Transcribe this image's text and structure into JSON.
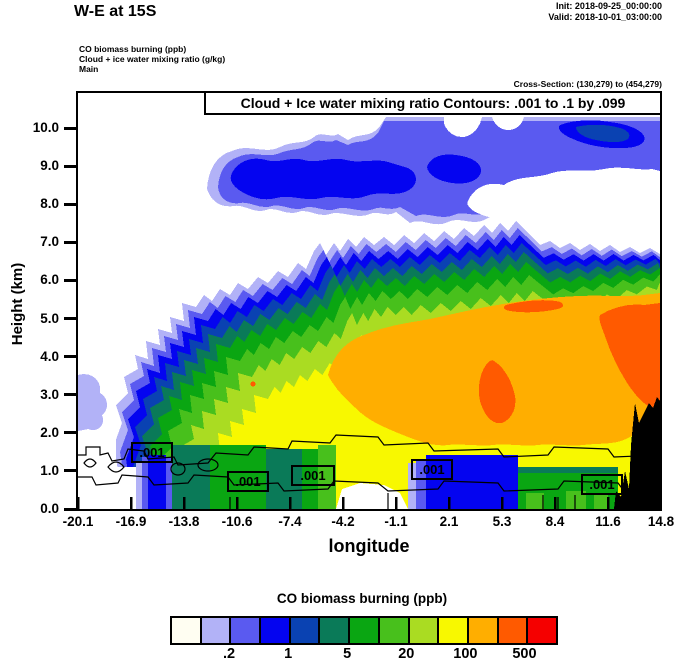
{
  "header": {
    "title": "W-E at 15S",
    "init": "Init: 2018-09-25_00:00:00",
    "valid": "Valid: 2018-10-01_03:00:00",
    "field_line1": "CO biomass burning   (ppb)",
    "field_line2": "Cloud + ice water mixing ratio   (g/kg)",
    "field_line3": "Main",
    "cross_section": "Cross-Section: (130,279) to (454,279)"
  },
  "plot": {
    "contour_note": "Cloud + Ice water mixing ratio Contours: .001 to .1 by .099",
    "xlabel": "longitude",
    "ylabel": "Height (km)",
    "x_ticks": [
      "-20.1",
      "-16.9",
      "-13.8",
      "-10.6",
      "-7.4",
      "-4.2",
      "-1.1",
      "2.1",
      "5.3",
      "8.4",
      "11.6",
      "14.8"
    ],
    "y_ticks": [
      "0.0",
      "1.0",
      "2.0",
      "3.0",
      "4.0",
      "5.0",
      "6.0",
      "7.0",
      "8.0",
      "9.0",
      "10.0"
    ],
    "contour_line_label": ".001"
  },
  "colorbar": {
    "title": "CO biomass burning  (ppb)",
    "tick_labels": [
      ".2",
      "1",
      "5",
      "20",
      "100",
      "500"
    ],
    "colors": [
      "#fffef2",
      "#b2b2f7",
      "#5a5af0",
      "#0404f0",
      "#0a42b2",
      "#0a7a58",
      "#0aa612",
      "#48c01c",
      "#aadc22",
      "#f8f800",
      "#ffae00",
      "#ff5a00",
      "#f50000"
    ]
  },
  "chart_data": {
    "type": "heatmap",
    "title": "Cloud + Ice water mixing ratio Contours: .001 to .1 by .099",
    "xlabel": "longitude",
    "ylabel": "Height (km)",
    "x_ticks": [
      -20.1,
      -16.9,
      -13.8,
      -10.6,
      -7.4,
      -4.2,
      -1.1,
      2.1,
      5.3,
      8.4,
      11.6,
      14.8
    ],
    "y_ticks_km": [
      0.0,
      1.0,
      2.0,
      3.0,
      4.0,
      5.0,
      6.0,
      7.0,
      8.0,
      9.0,
      10.0
    ],
    "y_range_km": [
      0,
      10.9
    ],
    "fill_field": "CO biomass burning (ppb)",
    "fill_scale_labels": [
      0.2,
      1,
      5,
      20,
      100,
      500
    ],
    "fill_colors": [
      "#fffef2",
      "#b2b2f7",
      "#5a5af0",
      "#0404f0",
      "#0a42b2",
      "#0a7a58",
      "#0aa612",
      "#48c01c",
      "#aadc22",
      "#f8f800",
      "#ffae00",
      "#ff5a00",
      "#f50000"
    ],
    "overlay_contour_field": "Cloud + Ice water mixing ratio (g/kg)",
    "overlay_contour_levels": [
      0.001,
      0.1
    ],
    "legend_position": "bottom",
    "grid": false,
    "features": [
      "Elevated cloud/ice blue layer (CO ~0.2-2 ppb) between ~7.5 and 10.5 km spanning longitudes ~-13 to 14.8, with embedded darker blue cores and white gaps",
      "Main biomass-burning plume rises from ~2.5 km at longitude ~-18 to ~7 km near longitude 2, layered from blue edges through green to a yellow interior",
      "Plume core above ~100 ppb (orange) from longitude ~-6 to 14.8 between ~1.5 and 5.5 km",
      "Deepest orange-red patches (~500 ppb) near longitude 2 at 3-4 km and near longitude 12-14.8 at 2-5 km; tiny red speck near longitude -11 at 3.2 km",
      "Boundary layer below ~1.3 km crossed by thin black 0.001 g/kg cloud-water contour lines with five boxed '.001' labels",
      "Black terrain silhouette at the eastern end rising to ~2.9 km at longitude 14.8"
    ]
  }
}
